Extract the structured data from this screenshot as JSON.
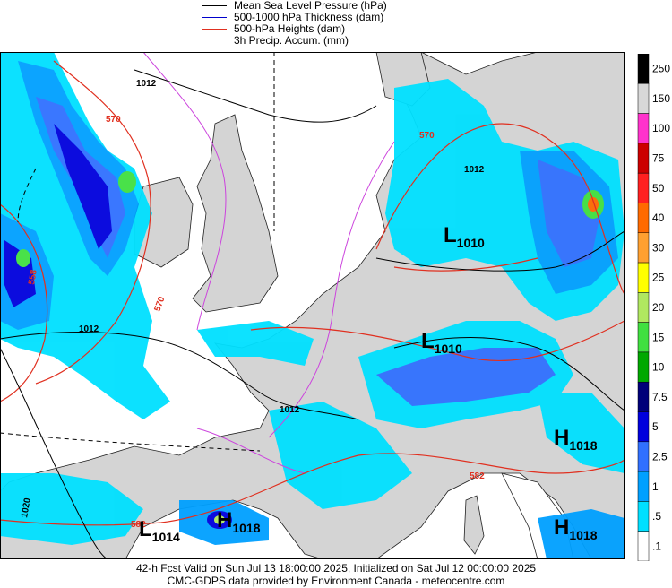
{
  "legend": {
    "items": [
      {
        "label": "Mean Sea Level Pressure (hPa)",
        "color": "#000000"
      },
      {
        "label": "500-1000 hPa Thickness (dam)",
        "color": "#0000cc"
      },
      {
        "label": "500-hPa Heights (dam)",
        "color": "#e03020"
      },
      {
        "label": "3h Precip. Accum. (mm)",
        "color": ""
      }
    ]
  },
  "colorbar": {
    "levels": [
      "250",
      "150",
      "100",
      "75",
      "50",
      "40",
      "30",
      "25",
      "20",
      "15",
      "10",
      "7.5",
      "5",
      "2.5",
      "1",
      ".5",
      ".1"
    ],
    "colors": [
      "#000000",
      "#d8d8d8",
      "#ff33cc",
      "#cc0000",
      "#ff2020",
      "#ff6a00",
      "#ffa030",
      "#ffff00",
      "#b0e860",
      "#40e040",
      "#00a800",
      "#00007a",
      "#0000dd",
      "#3070ff",
      "#00a0ff",
      "#00e0ff",
      "#ffffff"
    ]
  },
  "systems": [
    {
      "type": "L",
      "value": "1010",
      "name": "low-1010-germany"
    },
    {
      "type": "L",
      "value": "1010",
      "name": "low-1010-alps"
    },
    {
      "type": "H",
      "value": "1018",
      "name": "high-1018-italy"
    },
    {
      "type": "H",
      "value": "1018",
      "name": "high-1018-south"
    },
    {
      "type": "L",
      "value": "1014",
      "name": "low-1014-spain"
    },
    {
      "type": "H",
      "value": "1018",
      "name": "high-1018-spain"
    }
  ],
  "contour_labels": {
    "isobars": [
      "1012",
      "1012",
      "1012",
      "1012",
      "1020"
    ],
    "heights": [
      "570",
      "558",
      "570",
      "570",
      "582",
      "582"
    ]
  },
  "footer": {
    "line1": "42-h Fcst Valid on Sun Jul 13 18:00:00 2025, Initialized on Sat Jul 12 00:00:00 2025",
    "line2": "CMC-GDPS data provided by Environment Canada - meteocentre.com"
  }
}
